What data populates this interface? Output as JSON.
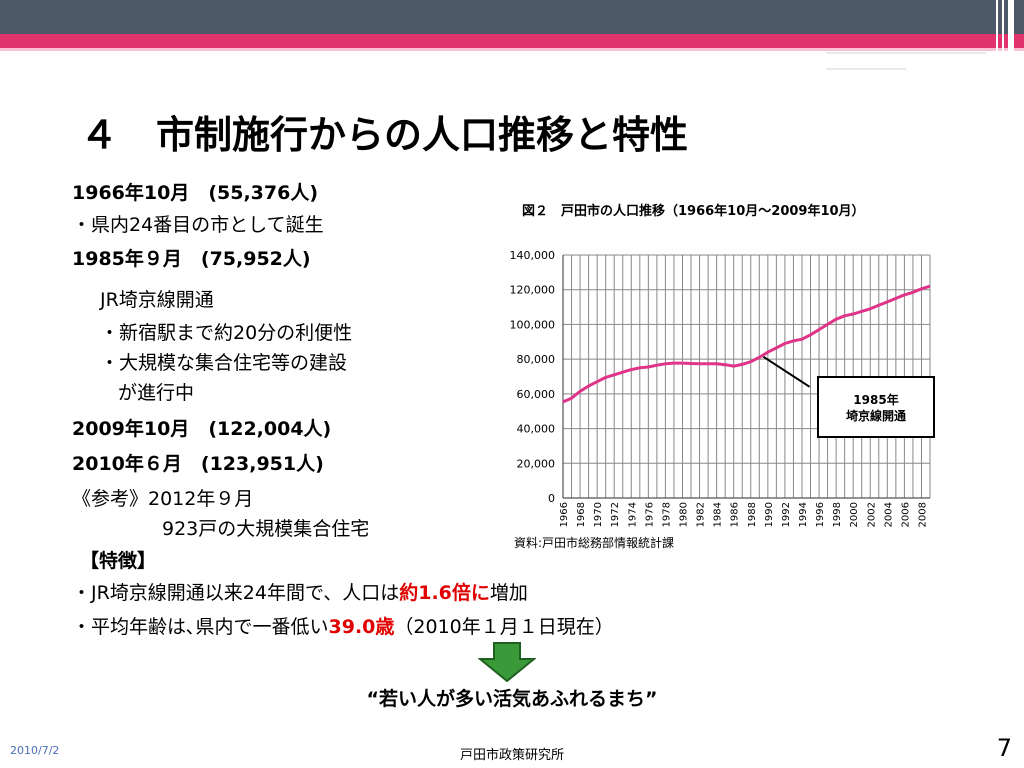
{
  "header": {
    "title": "４　市制施行からの人口推移と特性"
  },
  "left": {
    "l1": "1966年10月　(55,376人)",
    "l2": "・県内24番目の市として誕生",
    "l3": "1985年９月　(75,952人)",
    "l4": "JR埼京線開通",
    "l5": "・新宿駅まで約20分の利便性",
    "l6": "・大規模な集合住宅等の建設",
    "l7": "が進行中",
    "l8": "2009年10月　(122,004人)",
    "l9": "2010年６月　(123,951人)",
    "l10": "《参考》2012年９月",
    "l11": "923戸の大規模集合住宅",
    "features_heading": "【特徴】",
    "f1a": "・JR埼京線開通以来24年間で、人口は",
    "f1b": "約1.6倍に",
    "f1c": "増加",
    "f2a": "・平均年齢は､県内で一番低い",
    "f2b": "39.0歳",
    "f2c": "（2010年１月１日現在）"
  },
  "slogan": "“若い人が多い活気あふれるまち”",
  "footer": {
    "date": "2010/7/2",
    "center": "戸田市政策研究所",
    "page": "7"
  },
  "colors": {
    "topbar": "#4e5968",
    "accent": "#e0336e",
    "line": "#e0338a",
    "arrow": "#3a9a3a"
  },
  "icons": {
    "down_arrow": "down-arrow-icon"
  },
  "chart_data": {
    "type": "line",
    "title": "図２　戸田市の人口推移（1966年10月～2009年10月）",
    "source": "資料:戸田市総務部情報統計課",
    "ylim": [
      0,
      140000
    ],
    "yticks": [
      "0",
      "20,000",
      "40,000",
      "60,000",
      "80,000",
      "100,000",
      "120,000",
      "140,000"
    ],
    "xticks": [
      "1966",
      "1968",
      "1970",
      "1972",
      "1974",
      "1976",
      "1978",
      "1980",
      "1982",
      "1984",
      "1986",
      "1988",
      "1990",
      "1992",
      "1994",
      "1996",
      "1998",
      "2000",
      "2002",
      "2004",
      "2006",
      "2008"
    ],
    "grid": true,
    "x": [
      1966,
      1967,
      1968,
      1969,
      1970,
      1971,
      1972,
      1973,
      1974,
      1975,
      1976,
      1977,
      1978,
      1979,
      1980,
      1981,
      1982,
      1983,
      1984,
      1985,
      1986,
      1987,
      1988,
      1989,
      1990,
      1991,
      1992,
      1993,
      1994,
      1995,
      1996,
      1997,
      1998,
      1999,
      2000,
      2001,
      2002,
      2003,
      2004,
      2005,
      2006,
      2007,
      2008,
      2009
    ],
    "series": [
      {
        "values": [
          55376,
          57500,
          61500,
          64500,
          67000,
          69500,
          71000,
          72500,
          74000,
          75000,
          75500,
          76500,
          77300,
          77700,
          77700,
          77500,
          77400,
          77400,
          77300,
          76800,
          76000,
          77000,
          78500,
          81000,
          84000,
          86500,
          89000,
          90500,
          91500,
          94000,
          97000,
          100000,
          103000,
          105000,
          106000,
          107500,
          109000,
          111000,
          113000,
          115000,
          117000,
          118500,
          120500,
          122004
        ]
      }
    ],
    "annotation": {
      "line1": "1985年",
      "line2": "埼京線開通"
    }
  }
}
